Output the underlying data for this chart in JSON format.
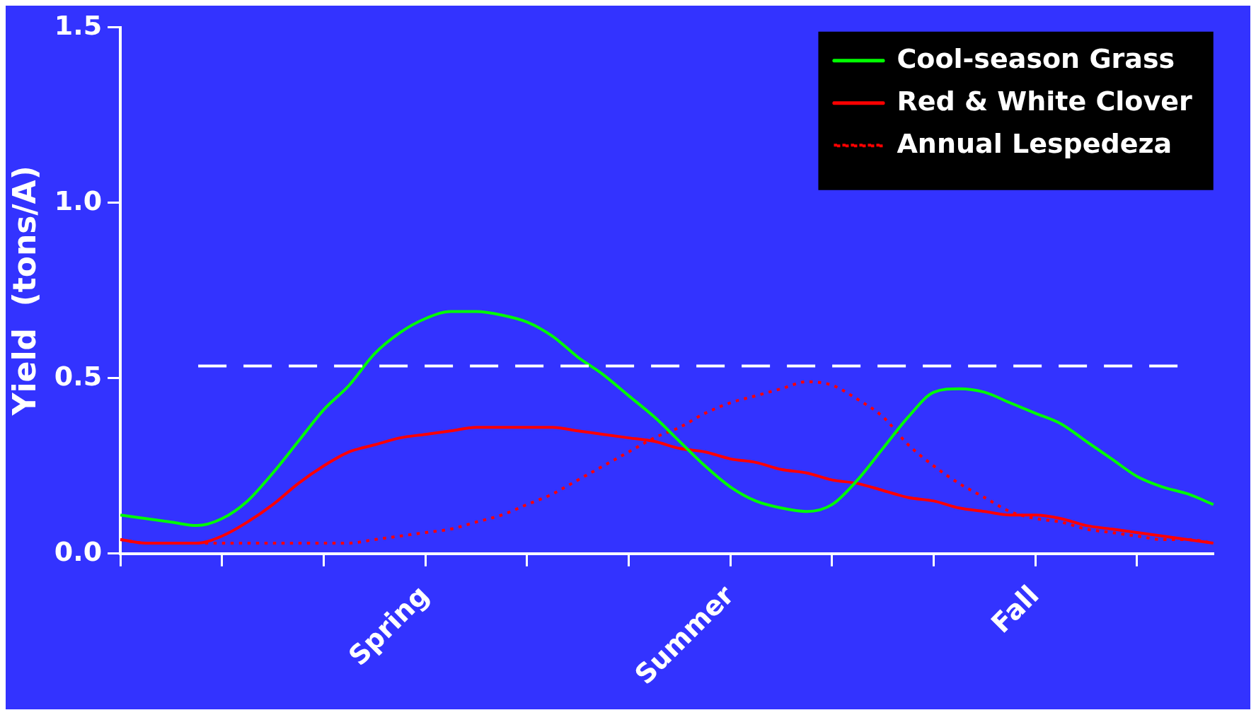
{
  "chart_data": {
    "type": "line",
    "ylabel": "Yield  (tons/A)",
    "categories": [
      null,
      null,
      null,
      null,
      null,
      null,
      null,
      null,
      null,
      null,
      null,
      null,
      "Spring",
      null,
      null,
      null,
      null,
      null,
      null,
      null,
      null,
      null,
      null,
      null,
      "Summer",
      null,
      null,
      null,
      null,
      null,
      null,
      null,
      null,
      null,
      null,
      null,
      "Fall",
      null,
      null,
      null,
      null,
      null,
      null,
      null
    ],
    "ylim": [
      0,
      1.5
    ],
    "yticks": [
      {
        "value": 0,
        "label": "0.0"
      },
      {
        "value": 0.5,
        "label": "0.5"
      },
      {
        "value": 1,
        "label": "1.0"
      },
      {
        "value": 1.5,
        "label": "1.5"
      }
    ],
    "grid": false,
    "legend": "top right",
    "marker": "none",
    "ref_lines": [
      {
        "axis": "y",
        "value": 0.535,
        "color": "#ffffff",
        "line_style": "dashed"
      }
    ],
    "series": [
      {
        "name": "Cool-season Grass",
        "color": "#00ff00",
        "line_style": "solid",
        "values": [
          0.11,
          0.1,
          0.09,
          0.08,
          0.1,
          0.15,
          0.23,
          0.32,
          0.41,
          0.48,
          0.57,
          0.63,
          0.67,
          0.69,
          0.69,
          0.68,
          0.66,
          0.62,
          0.56,
          0.51,
          0.45,
          0.39,
          0.32,
          0.25,
          0.19,
          0.15,
          0.13,
          0.12,
          0.14,
          0.21,
          0.3,
          0.39,
          0.46,
          0.47,
          0.46,
          0.43,
          0.4,
          0.37,
          0.32,
          0.27,
          0.22,
          0.19,
          0.17,
          0.14
        ]
      },
      {
        "name": "Red & White Clover",
        "color": "#ff0000",
        "line_style": "solid",
        "values": [
          0.04,
          0.03,
          0.03,
          0.03,
          0.05,
          0.09,
          0.14,
          0.2,
          0.25,
          0.29,
          0.31,
          0.33,
          0.34,
          0.35,
          0.36,
          0.36,
          0.36,
          0.36,
          0.35,
          0.34,
          0.33,
          0.32,
          0.3,
          0.29,
          0.27,
          0.26,
          0.24,
          0.23,
          0.21,
          0.2,
          0.18,
          0.16,
          0.15,
          0.13,
          0.12,
          0.11,
          0.11,
          0.1,
          0.08,
          0.07,
          0.06,
          0.05,
          0.04,
          0.03
        ]
      },
      {
        "name": "Annual Lespedeza",
        "color": "#ff0000",
        "line_style": "dotted",
        "values": [
          0.04,
          0.03,
          0.03,
          0.03,
          0.03,
          0.03,
          0.03,
          0.03,
          0.03,
          0.03,
          0.04,
          0.05,
          0.06,
          0.07,
          0.09,
          0.11,
          0.14,
          0.17,
          0.21,
          0.25,
          0.29,
          0.33,
          0.36,
          0.4,
          0.43,
          0.45,
          0.47,
          0.49,
          0.48,
          0.44,
          0.39,
          0.31,
          0.25,
          0.2,
          0.16,
          0.12,
          0.1,
          0.09,
          0.07,
          0.06,
          0.05,
          0.04,
          0.04,
          0.03
        ]
      }
    ]
  }
}
